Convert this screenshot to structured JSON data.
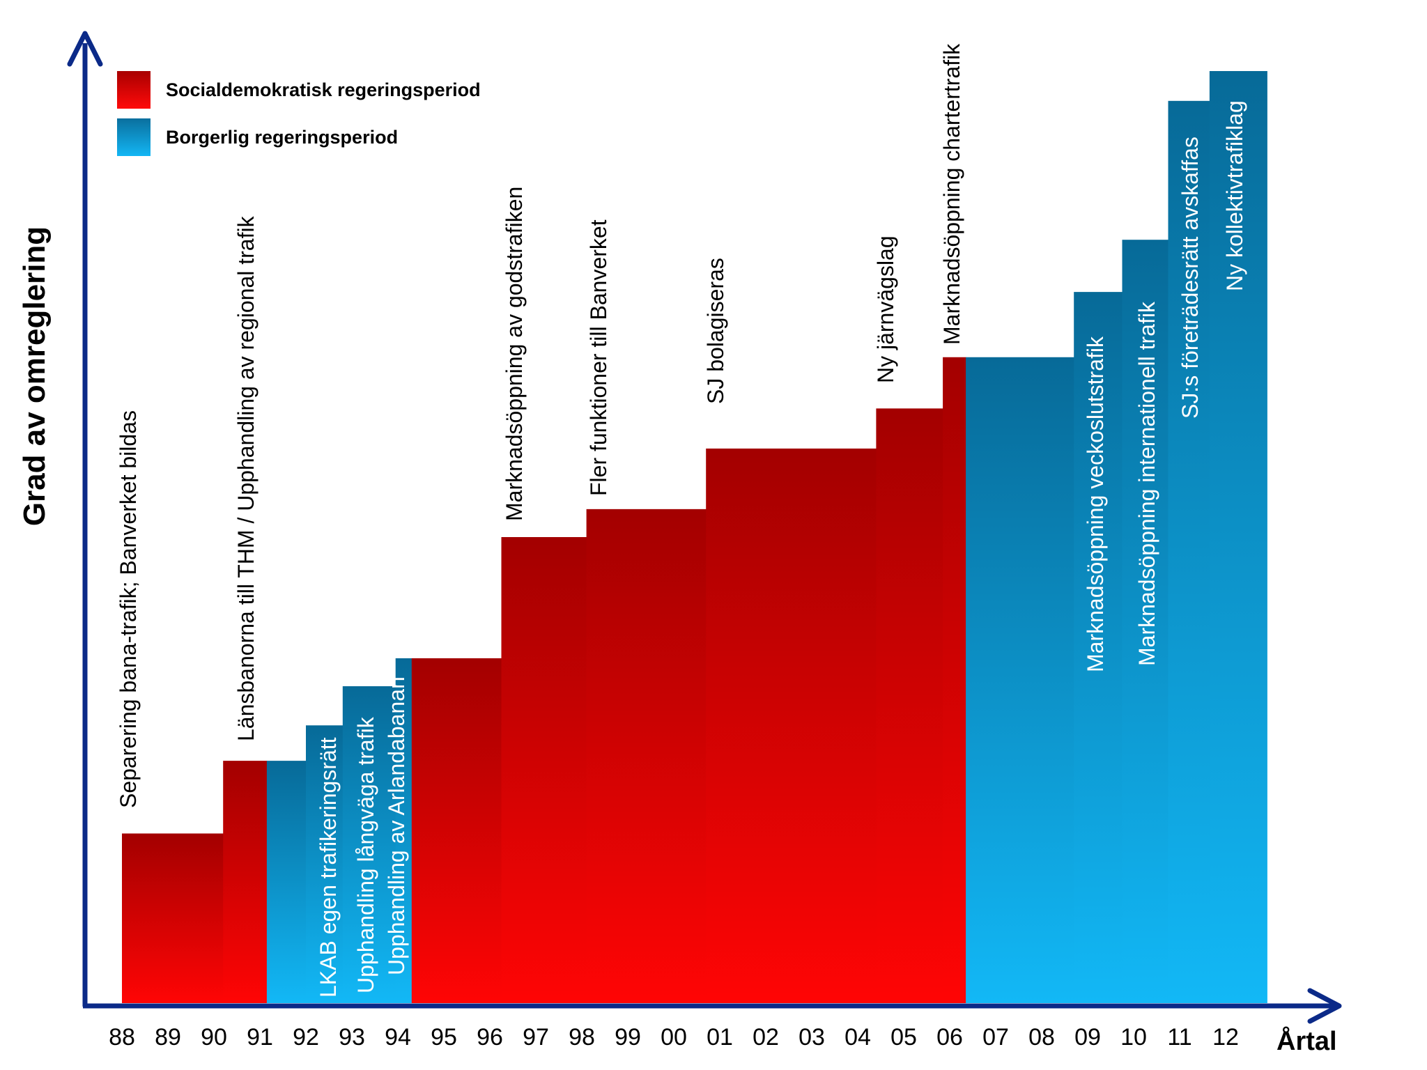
{
  "chart_data": {
    "type": "bar",
    "title": "",
    "ylabel": "Grad av omreglering",
    "xlabel": "Årtal",
    "categories": [
      "88",
      "89",
      "90",
      "91",
      "92",
      "93",
      "94",
      "95",
      "96",
      "97",
      "98",
      "99",
      "00",
      "01",
      "02",
      "03",
      "04",
      "05",
      "06",
      "07",
      "08",
      "09",
      "10",
      "11",
      "12"
    ],
    "ylim": [
      0,
      100
    ],
    "colors": {
      "red_top": "#a30000",
      "red_bottom": "#ff0505",
      "blue_top": "#076a98",
      "blue_bottom": "#12b8f6",
      "axis": "#0b2a88"
    },
    "legend": [
      {
        "label": "Socialdemokratisk regeringsperiod",
        "series": "red"
      },
      {
        "label": "Borgerlig regeringsperiod",
        "series": "blue"
      }
    ],
    "steps": [
      {
        "from": 88.0,
        "to": 90.2,
        "value": 18.2,
        "series": "red",
        "label": "Separering bana-trafik; Banverket bildas"
      },
      {
        "from": 90.2,
        "to": 91.15,
        "value": 26.0,
        "series": "red",
        "label": "Länsbanorna till THM / Upphandling av regional trafik"
      },
      {
        "from": 91.15,
        "to": 92.0,
        "value": 26.0,
        "series": "blue",
        "label": ""
      },
      {
        "from": 92.0,
        "to": 92.8,
        "value": 29.8,
        "series": "blue",
        "label": "LKAB egen trafikeringsrätt"
      },
      {
        "from": 92.8,
        "to": 93.95,
        "value": 34.0,
        "series": "blue",
        "label": "Upphandling långväga trafik"
      },
      {
        "from": 93.95,
        "to": 94.3,
        "value": 37.0,
        "series": "blue",
        "label": "Upphandling av Arlandabanan"
      },
      {
        "from": 94.3,
        "to": 96.25,
        "value": 37.0,
        "series": "red",
        "label": ""
      },
      {
        "from": 96.25,
        "to": 98.1,
        "value": 50.0,
        "series": "red",
        "label": "Marknadsöppning av godstrafiken"
      },
      {
        "from": 98.1,
        "to": 100.7,
        "value": 53.0,
        "series": "red",
        "label": "Fler funktioner till Banverket"
      },
      {
        "from": 100.7,
        "to": 104.4,
        "value": 59.5,
        "series": "red",
        "label": "SJ bolagiseras"
      },
      {
        "from": 104.4,
        "to": 105.85,
        "value": 63.8,
        "series": "red",
        "label": "Ny järnvägslag"
      },
      {
        "from": 105.85,
        "to": 106.35,
        "value": 69.3,
        "series": "red",
        "label": "Marknadsöppning chartertrafik"
      },
      {
        "from": 106.35,
        "to": 108.7,
        "value": 69.3,
        "series": "blue",
        "label": ""
      },
      {
        "from": 108.7,
        "to": 109.75,
        "value": 76.3,
        "series": "blue",
        "label": "Marknadsöppning veckoslutstrafik"
      },
      {
        "from": 109.75,
        "to": 110.75,
        "value": 81.9,
        "series": "blue",
        "label": "Marknadsöppning internationell trafik"
      },
      {
        "from": 110.75,
        "to": 111.65,
        "value": 96.8,
        "series": "blue",
        "label": "SJ:s företrädesrätt avskaffas"
      },
      {
        "from": 111.65,
        "to": 112.9,
        "value": 100.0,
        "series": "blue",
        "label": "Ny kollektivtrafiklag"
      }
    ]
  }
}
